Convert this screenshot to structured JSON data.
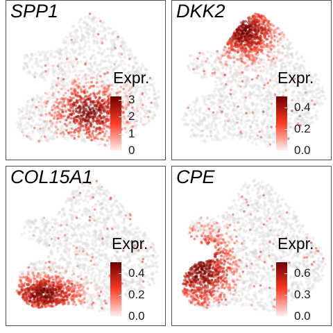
{
  "chart_data": [
    {
      "type": "scatter",
      "title": "SPP1",
      "legend_title": "Expr.",
      "ticks": [
        0,
        1,
        2,
        3
      ],
      "tick_labels": [
        "0",
        "1",
        "2",
        "3"
      ],
      "value_range": [
        0,
        3.2
      ],
      "hotspot": "bottom-center"
    },
    {
      "type": "scatter",
      "title": "DKK2",
      "legend_title": "Expr.",
      "ticks": [
        0.0,
        0.2,
        0.4
      ],
      "tick_labels": [
        "0.0",
        "0.2",
        "0.4"
      ],
      "value_range": [
        0,
        0.5
      ],
      "hotspot": "top"
    },
    {
      "type": "scatter",
      "title": "COL15A1",
      "legend_title": "Expr.",
      "ticks": [
        0.0,
        0.2,
        0.4
      ],
      "tick_labels": [
        "0.0",
        "0.2",
        "0.4"
      ],
      "value_range": [
        0,
        0.5
      ],
      "hotspot": "bottom-left"
    },
    {
      "type": "scatter",
      "title": "CPE",
      "legend_title": "Expr.",
      "ticks": [
        0.0,
        0.3,
        0.6
      ],
      "tick_labels": [
        "0.0",
        "0.3",
        "0.6"
      ],
      "value_range": [
        0,
        0.75
      ],
      "hotspot": "left"
    }
  ],
  "colors": {
    "low": "#fff0f0",
    "mid": "#ff3b24",
    "high": "#6e0000",
    "background_cells": "#d8d8d8",
    "frame": "#4d4d4d"
  }
}
